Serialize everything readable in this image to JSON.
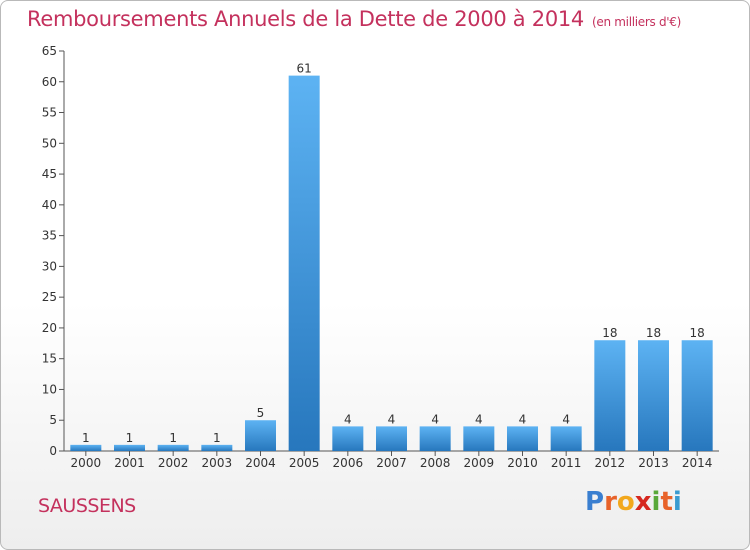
{
  "header": {
    "title": "Remboursements Annuels de la Dette de 2000 à 2014",
    "unit": "(en milliers d'€)"
  },
  "footer": {
    "commune": "SAUSSENS",
    "brand": "Proxiti",
    "brand_letters": [
      "P",
      "r",
      "o",
      "x",
      "i",
      "t",
      "i"
    ],
    "brand_colors": [
      "#3a7fd0",
      "#e8632a",
      "#f2a81d",
      "#d6281f",
      "#5aa93a",
      "#e8632a",
      "#3a9bd0"
    ]
  },
  "colors": {
    "title": "#c4315d",
    "bar_light": "#5aaef0",
    "bar_dark": "#2a7bc0"
  },
  "chart_data": {
    "type": "bar",
    "title": "Remboursements Annuels de la Dette de 2000 à 2014",
    "subtitle": "(en milliers d'€)",
    "categories": [
      "2000",
      "2001",
      "2002",
      "2003",
      "2004",
      "2005",
      "2006",
      "2007",
      "2008",
      "2009",
      "2010",
      "2011",
      "2012",
      "2013",
      "2014"
    ],
    "values": [
      1,
      1,
      1,
      1,
      5,
      61,
      4,
      4,
      4,
      4,
      4,
      4,
      18,
      18,
      18
    ],
    "ylim": [
      0,
      65
    ],
    "yticks": [
      0,
      5,
      10,
      15,
      20,
      25,
      30,
      35,
      40,
      45,
      50,
      55,
      60,
      65
    ],
    "grid": false,
    "data_labels": true
  }
}
